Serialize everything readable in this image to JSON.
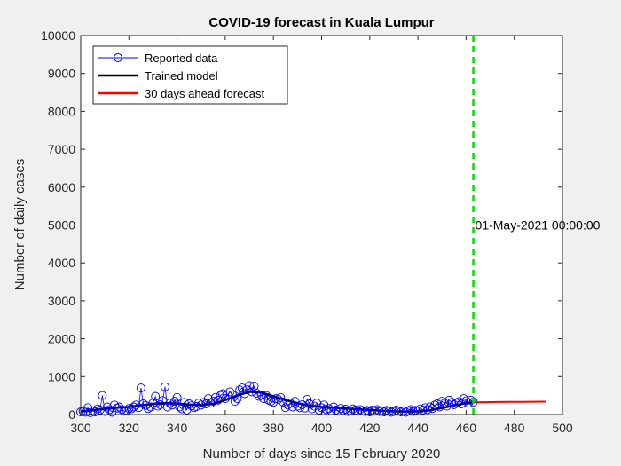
{
  "chart_data": {
    "type": "line",
    "title": "COVID-19 forecast in Kuala Lumpur",
    "xlabel": "Number of days since 15 February 2020",
    "ylabel": "Number of daily cases",
    "xlim": [
      300,
      500
    ],
    "ylim": [
      0,
      10000
    ],
    "xticks": [
      "300",
      "320",
      "340",
      "360",
      "380",
      "400",
      "420",
      "440",
      "460",
      "480",
      "500"
    ],
    "yticks": [
      "0",
      "1000",
      "2000",
      "3000",
      "4000",
      "5000",
      "6000",
      "7000",
      "8000",
      "9000",
      "10000"
    ],
    "grid": false,
    "legend_position": "top-left",
    "series": [
      {
        "name": "Reported data",
        "style": "line-circle-markers",
        "color": "#0000ff",
        "x": [
          300,
          301,
          302,
          303,
          304,
          305,
          306,
          307,
          308,
          309,
          310,
          311,
          312,
          313,
          314,
          315,
          316,
          317,
          318,
          319,
          320,
          321,
          322,
          323,
          324,
          325,
          326,
          327,
          328,
          329,
          330,
          331,
          332,
          333,
          334,
          335,
          336,
          337,
          338,
          339,
          340,
          341,
          342,
          343,
          344,
          345,
          346,
          347,
          348,
          349,
          350,
          351,
          352,
          353,
          354,
          355,
          356,
          357,
          358,
          359,
          360,
          361,
          362,
          363,
          364,
          365,
          366,
          367,
          368,
          369,
          370,
          371,
          372,
          373,
          374,
          375,
          376,
          377,
          378,
          379,
          380,
          381,
          382,
          383,
          384,
          385,
          386,
          387,
          388,
          389,
          390,
          391,
          392,
          393,
          394,
          395,
          396,
          397,
          398,
          399,
          400,
          401,
          402,
          403,
          404,
          405,
          406,
          407,
          408,
          409,
          410,
          411,
          412,
          413,
          414,
          415,
          416,
          417,
          418,
          419,
          420,
          421,
          422,
          423,
          424,
          425,
          426,
          427,
          428,
          429,
          430,
          431,
          432,
          433,
          434,
          435,
          436,
          437,
          438,
          439,
          440,
          441,
          442,
          443,
          444,
          445,
          446,
          447,
          448,
          449,
          450,
          451,
          452,
          453,
          454,
          455,
          456,
          457,
          458,
          459,
          460,
          461,
          462,
          463
        ],
        "y": [
          70,
          90,
          60,
          180,
          50,
          100,
          70,
          150,
          120,
          500,
          80,
          200,
          130,
          60,
          250,
          170,
          200,
          130,
          90,
          110,
          160,
          150,
          200,
          250,
          180,
          700,
          280,
          240,
          160,
          200,
          300,
          480,
          220,
          260,
          370,
          730,
          200,
          300,
          250,
          350,
          450,
          200,
          150,
          320,
          120,
          280,
          230,
          180,
          210,
          300,
          250,
          320,
          280,
          420,
          300,
          350,
          450,
          380,
          500,
          550,
          420,
          520,
          600,
          520,
          350,
          420,
          650,
          700,
          550,
          650,
          760,
          600,
          750,
          560,
          480,
          520,
          420,
          500,
          380,
          350,
          320,
          420,
          400,
          450,
          330,
          180,
          250,
          300,
          200,
          350,
          220,
          180,
          260,
          170,
          400,
          280,
          150,
          220,
          300,
          120,
          180,
          250,
          130,
          160,
          100,
          200,
          120,
          90,
          160,
          110,
          140,
          80,
          100,
          150,
          120,
          90,
          130,
          100,
          80,
          110,
          70,
          120,
          90,
          130,
          80,
          100,
          70,
          110,
          90,
          60,
          80,
          120,
          90,
          70,
          100,
          60,
          90,
          130,
          80,
          110,
          100,
          150,
          120,
          180,
          130,
          200,
          160,
          250,
          280,
          200,
          350,
          300,
          220,
          380,
          320,
          260,
          300,
          340,
          280,
          420,
          360,
          300,
          380,
          330
        ]
      },
      {
        "name": "Trained model",
        "style": "line",
        "color": "#000000",
        "x": [
          300,
          305,
          310,
          315,
          320,
          325,
          330,
          335,
          340,
          345,
          350,
          355,
          360,
          365,
          370,
          375,
          380,
          385,
          390,
          395,
          400,
          405,
          410,
          415,
          420,
          425,
          430,
          435,
          440,
          445,
          450,
          455,
          460,
          463
        ],
        "y": [
          80,
          110,
          150,
          180,
          200,
          240,
          280,
          300,
          290,
          260,
          250,
          280,
          380,
          500,
          600,
          580,
          480,
          380,
          300,
          240,
          200,
          180,
          160,
          140,
          120,
          100,
          85,
          80,
          85,
          110,
          170,
          240,
          300,
          320
        ]
      },
      {
        "name": "30 days ahead forecast",
        "style": "line",
        "color": "#ff0000",
        "x": [
          463,
          468,
          473,
          478,
          483,
          488,
          493
        ],
        "y": [
          320,
          325,
          330,
          333,
          335,
          337,
          340
        ]
      }
    ],
    "annotations": [
      {
        "type": "vertical-line",
        "x": 463,
        "color": "#00e000",
        "style": "dashed"
      },
      {
        "type": "text",
        "x": 463,
        "y": 5000,
        "text": "01-May-2021 00:00:00"
      }
    ]
  }
}
